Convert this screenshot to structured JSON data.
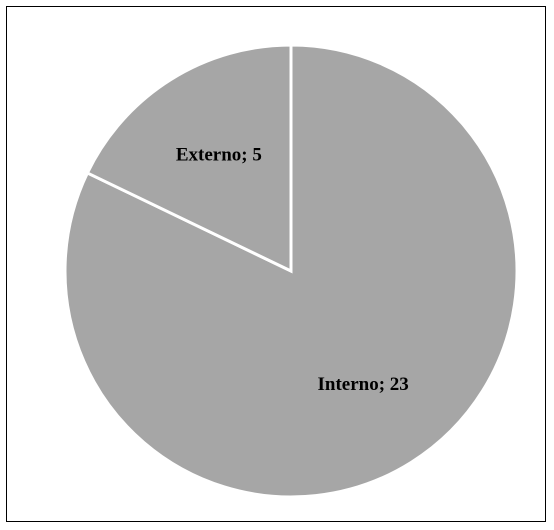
{
  "chart_data": {
    "type": "pie",
    "title": "",
    "slices": [
      {
        "name": "Interno",
        "value": 23,
        "label": "Interno; 23"
      },
      {
        "name": "Externo",
        "value": 5,
        "label": "Externo; 5"
      }
    ],
    "colors": {
      "fill": "#a6a6a6",
      "separator": "#ffffff"
    },
    "legend": "none",
    "data_labels": "category; value"
  }
}
